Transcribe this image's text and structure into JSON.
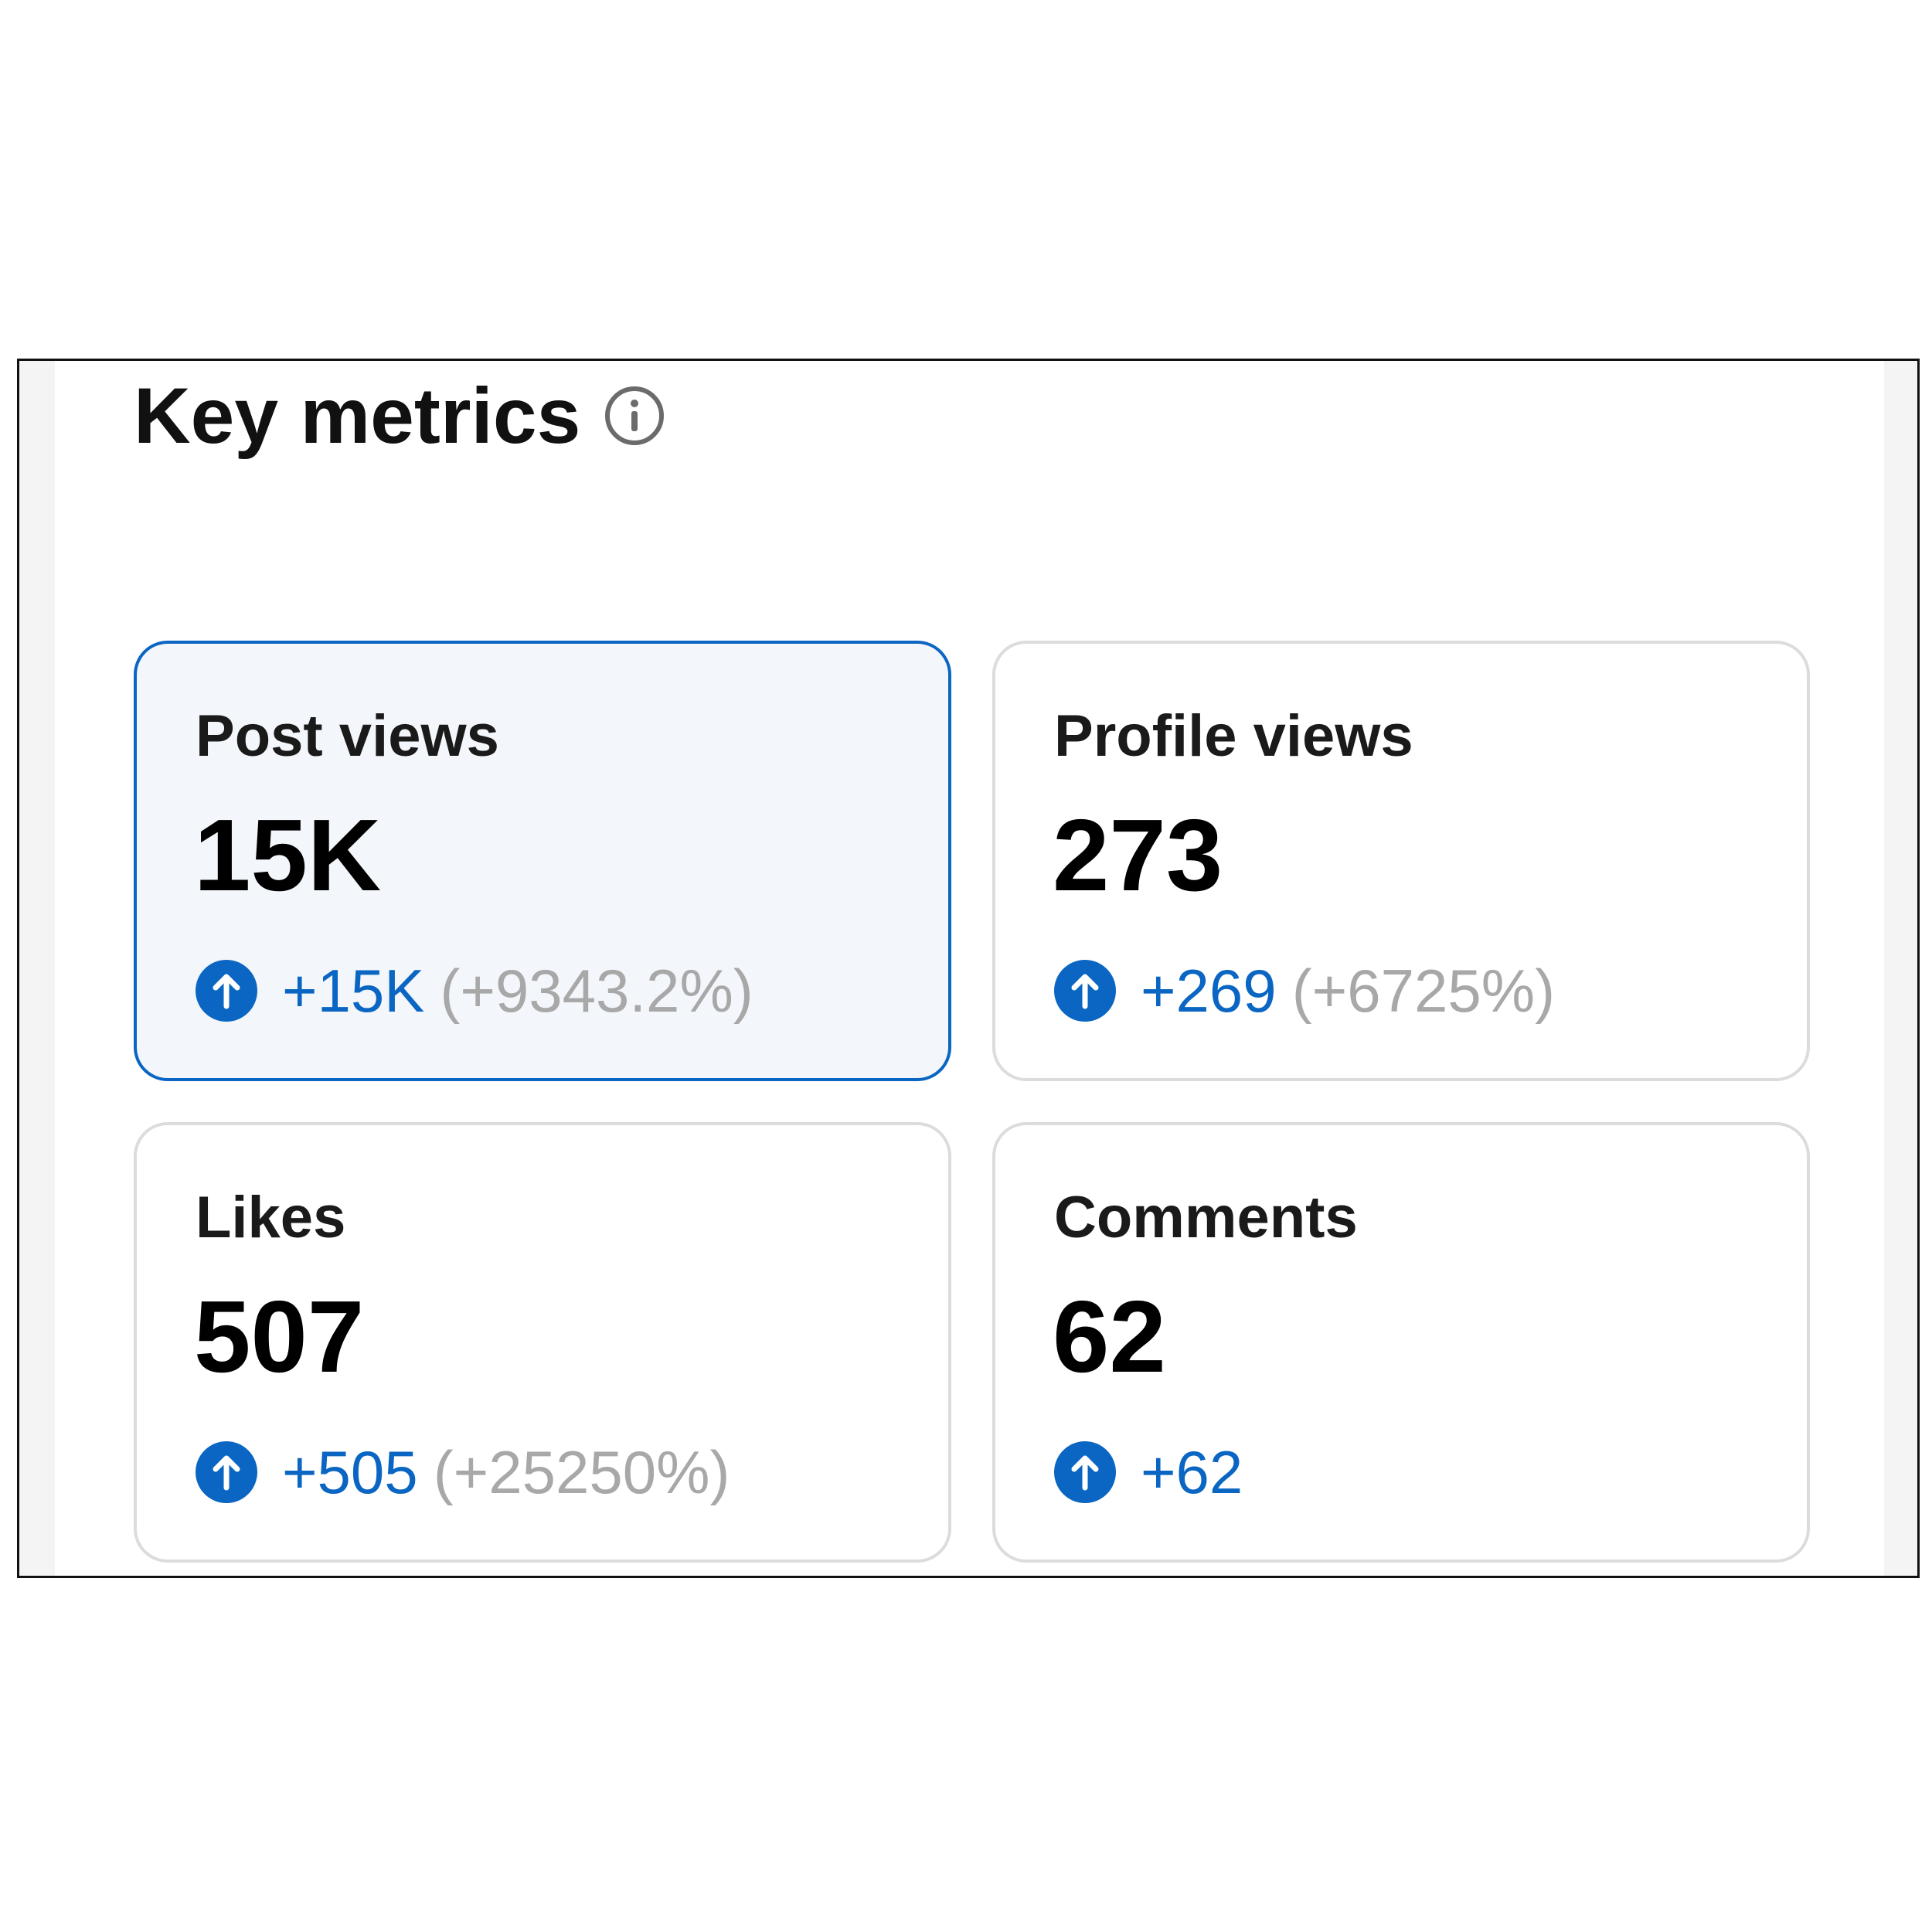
{
  "section": {
    "title": "Key metrics",
    "info_icon": "info-circle-icon"
  },
  "colors": {
    "accent": "#0a66c2",
    "muted": "#a8a8a8",
    "selected_bg": "#f3f6fb",
    "card_border": "#dcdcdc"
  },
  "metrics": [
    {
      "label": "Post views",
      "value": "15K",
      "change": "+15K",
      "change_pct": "(+9343.2%)",
      "trend_icon": "arrow-up-circle-icon",
      "selected": true
    },
    {
      "label": "Profile views",
      "value": "273",
      "change": "+269",
      "change_pct": "(+6725%)",
      "trend_icon": "arrow-up-circle-icon",
      "selected": false
    },
    {
      "label": "Likes",
      "value": "507",
      "change": "+505",
      "change_pct": "(+25250%)",
      "trend_icon": "arrow-up-circle-icon",
      "selected": false
    },
    {
      "label": "Comments",
      "value": "62",
      "change": "+62",
      "change_pct": "",
      "trend_icon": "arrow-up-circle-icon",
      "selected": false
    }
  ]
}
